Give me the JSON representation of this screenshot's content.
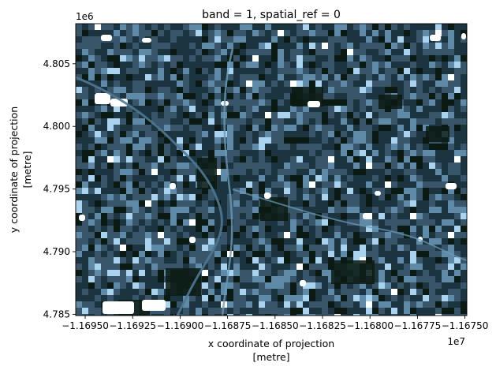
{
  "chart_data": {
    "type": "heatmap",
    "title": "band = 1, spatial_ref = 0",
    "xlabel": [
      "x coordinate of projection",
      "[metre]"
    ],
    "ylabel": [
      "y coordinate of projection",
      "[metre]"
    ],
    "x_offset_text": "1e7",
    "y_offset_text": "1e6",
    "xlim": [
      -1.16955,
      -1.16749
    ],
    "ylim": [
      4.7849,
      4.8082
    ],
    "x_ticks": [
      {
        "value": -1.1695,
        "label": "−1.16950"
      },
      {
        "value": -1.16925,
        "label": "−1.16925"
      },
      {
        "value": -1.169,
        "label": "−1.16900"
      },
      {
        "value": -1.16875,
        "label": "−1.16875"
      },
      {
        "value": -1.1685,
        "label": "−1.16850"
      },
      {
        "value": -1.16825,
        "label": "−1.16825"
      },
      {
        "value": -1.168,
        "label": "−1.16800"
      },
      {
        "value": -1.16775,
        "label": "−1.16775"
      },
      {
        "value": -1.1675,
        "label": "−1.16750"
      }
    ],
    "y_ticks": [
      {
        "value": 4.785,
        "label": "4.785"
      },
      {
        "value": 4.79,
        "label": "4.790"
      },
      {
        "value": 4.795,
        "label": "4.795"
      },
      {
        "value": 4.8,
        "label": "4.800"
      },
      {
        "value": 4.805,
        "label": "4.805"
      }
    ],
    "colormap": [
      "#0b1a12",
      "#1c3340",
      "#38556a",
      "#5f8aa8",
      "#a9d3ee",
      "#ffffff"
    ],
    "grid": false,
    "colorbar": false
  }
}
